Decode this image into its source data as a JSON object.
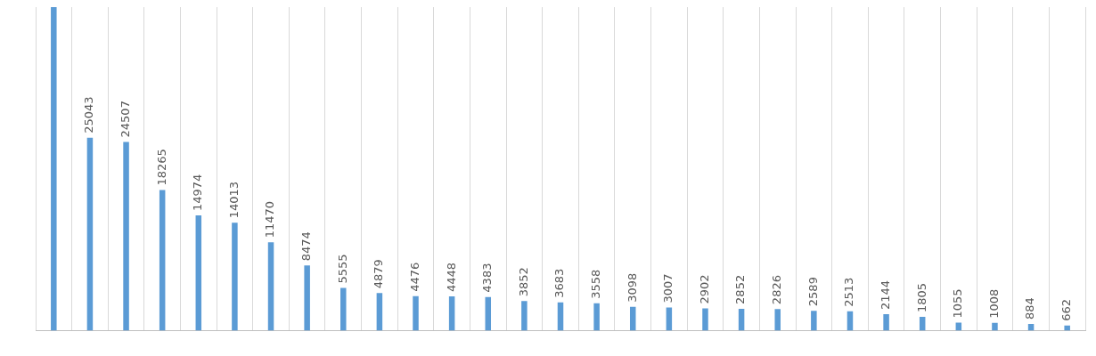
{
  "chart_data": {
    "type": "bar",
    "categories": [
      null,
      null,
      null,
      null,
      null,
      null,
      null,
      null,
      null,
      null,
      null,
      null,
      null,
      null,
      null,
      null,
      null,
      null,
      null,
      null,
      null,
      null,
      null,
      null,
      null,
      null,
      null,
      null,
      null
    ],
    "values": [
      42000,
      25043,
      24507,
      18265,
      14974,
      14013,
      11470,
      8474,
      5555,
      4879,
      4476,
      4448,
      4383,
      3852,
      3683,
      3558,
      3098,
      3007,
      2902,
      2852,
      2826,
      2589,
      2513,
      2144,
      1805,
      1055,
      1008,
      884,
      662
    ],
    "value_labels": [
      null,
      "25043",
      "24507",
      "18265",
      "14974",
      "14013",
      "11470",
      "8474",
      "5555",
      "4879",
      "4476",
      "4448",
      "4383",
      "3852",
      "3683",
      "3558",
      "3098",
      "3007",
      "2902",
      "2852",
      "2826",
      "2589",
      "2513",
      "2144",
      "1805",
      "1055",
      "1008",
      "884",
      "662"
    ],
    "color": "#5b9bd5",
    "ylim": [
      0,
      42000
    ],
    "grid": "x",
    "legend": false
  }
}
